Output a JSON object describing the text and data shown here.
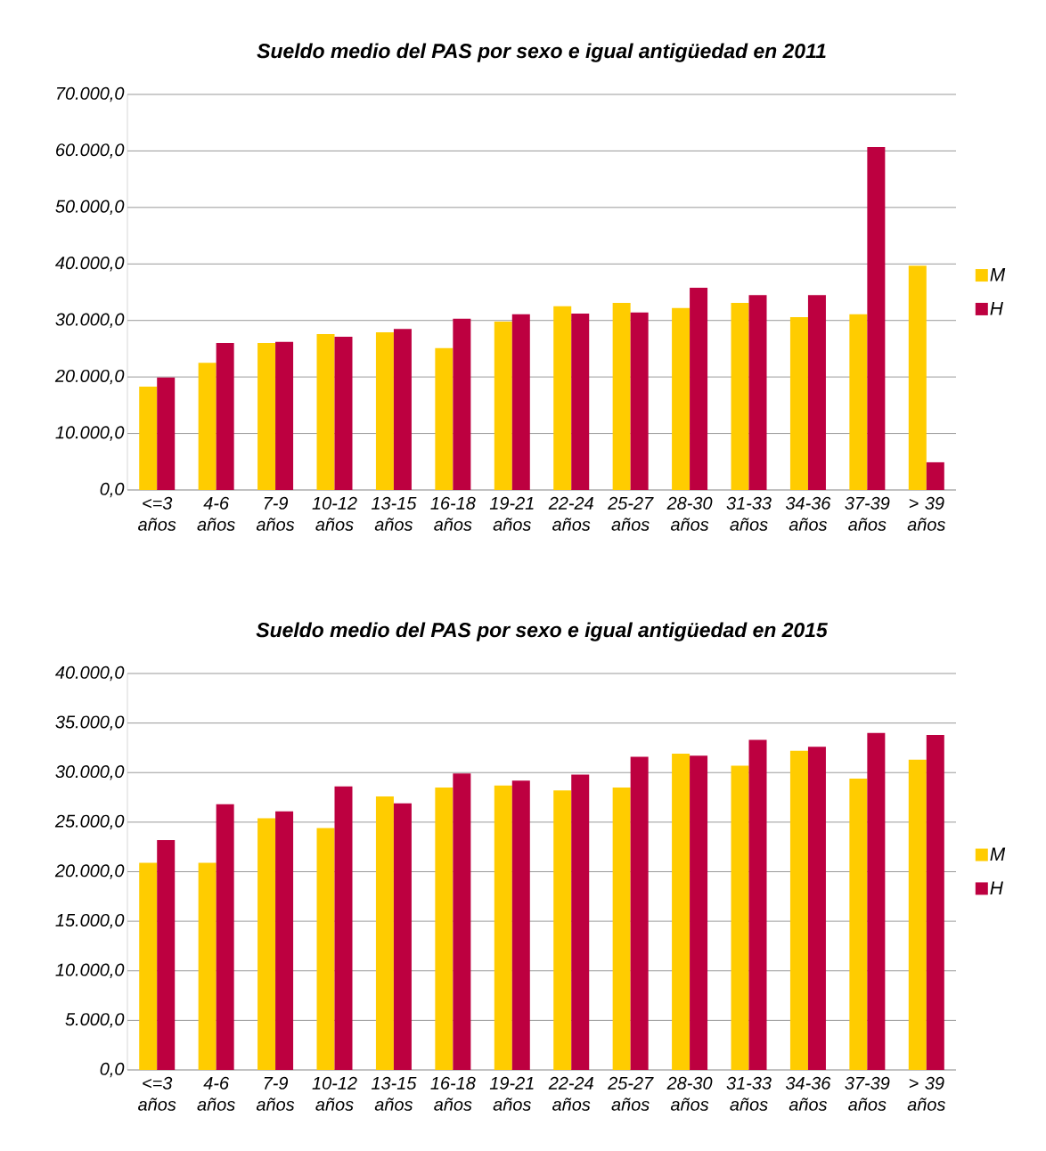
{
  "chart_data": [
    {
      "type": "bar",
      "title": "Sueldo medio del PAS por sexo e igual antigüedad en 2011",
      "categories": [
        "<=3 años",
        "4-6 años",
        "7-9 años",
        "10-12 años",
        "13-15 años",
        "16-18 años",
        "19-21 años",
        "22-24 años",
        "25-27 años",
        "28-30 años",
        "31-33 años",
        "34-36 años",
        "37-39 años",
        "> 39 años"
      ],
      "series": [
        {
          "name": "M",
          "color": "#ffcc00",
          "values": [
            18300,
            22500,
            26000,
            27600,
            27900,
            25100,
            29800,
            32500,
            33100,
            32200,
            33100,
            30600,
            31100,
            39700
          ]
        },
        {
          "name": "H",
          "color": "#bd0040",
          "values": [
            19900,
            26000,
            26200,
            27100,
            28500,
            30300,
            31100,
            31200,
            31400,
            35800,
            34500,
            34500,
            60700,
            4900
          ]
        }
      ],
      "ylim": [
        0,
        70000
      ],
      "yticks": [
        {
          "value": 0,
          "label": "0,0"
        },
        {
          "value": 10000,
          "label": "10.000,0"
        },
        {
          "value": 20000,
          "label": "20.000,0"
        },
        {
          "value": 30000,
          "label": "30.000,0"
        },
        {
          "value": 40000,
          "label": "40.000,0"
        },
        {
          "value": 50000,
          "label": "50.000,0"
        },
        {
          "value": 60000,
          "label": "60.000,0"
        },
        {
          "value": 70000,
          "label": "70.000,0"
        }
      ],
      "grid": "y",
      "legend": "right"
    },
    {
      "type": "bar",
      "title": "Sueldo medio del PAS por sexo e igual antigüedad en 2015",
      "categories": [
        "<=3 años",
        "4-6 años",
        "7-9 años",
        "10-12 años",
        "13-15 años",
        "16-18 años",
        "19-21 años",
        "22-24 años",
        "25-27 años",
        "28-30 años",
        "31-33 años",
        "34-36 años",
        "37-39 años",
        "> 39 años"
      ],
      "series": [
        {
          "name": "M",
          "color": "#ffcc00",
          "values": [
            20900,
            20900,
            25400,
            24400,
            27600,
            28500,
            28700,
            28200,
            28500,
            31900,
            30700,
            32200,
            29400,
            31300
          ]
        },
        {
          "name": "H",
          "color": "#bd0040",
          "values": [
            23200,
            26800,
            26100,
            28600,
            26900,
            29900,
            29200,
            29800,
            31600,
            31700,
            33300,
            32600,
            34000,
            33800
          ]
        }
      ],
      "ylim": [
        0,
        40000
      ],
      "yticks": [
        {
          "value": 0,
          "label": "0,0"
        },
        {
          "value": 5000,
          "label": "5.000,0"
        },
        {
          "value": 10000,
          "label": "10.000,0"
        },
        {
          "value": 15000,
          "label": "15.000,0"
        },
        {
          "value": 20000,
          "label": "20.000,0"
        },
        {
          "value": 25000,
          "label": "25.000,0"
        },
        {
          "value": 30000,
          "label": "30.000,0"
        },
        {
          "value": 35000,
          "label": "35.000,0"
        },
        {
          "value": 40000,
          "label": "40.000,0"
        }
      ],
      "grid": "y",
      "legend": "right"
    }
  ]
}
